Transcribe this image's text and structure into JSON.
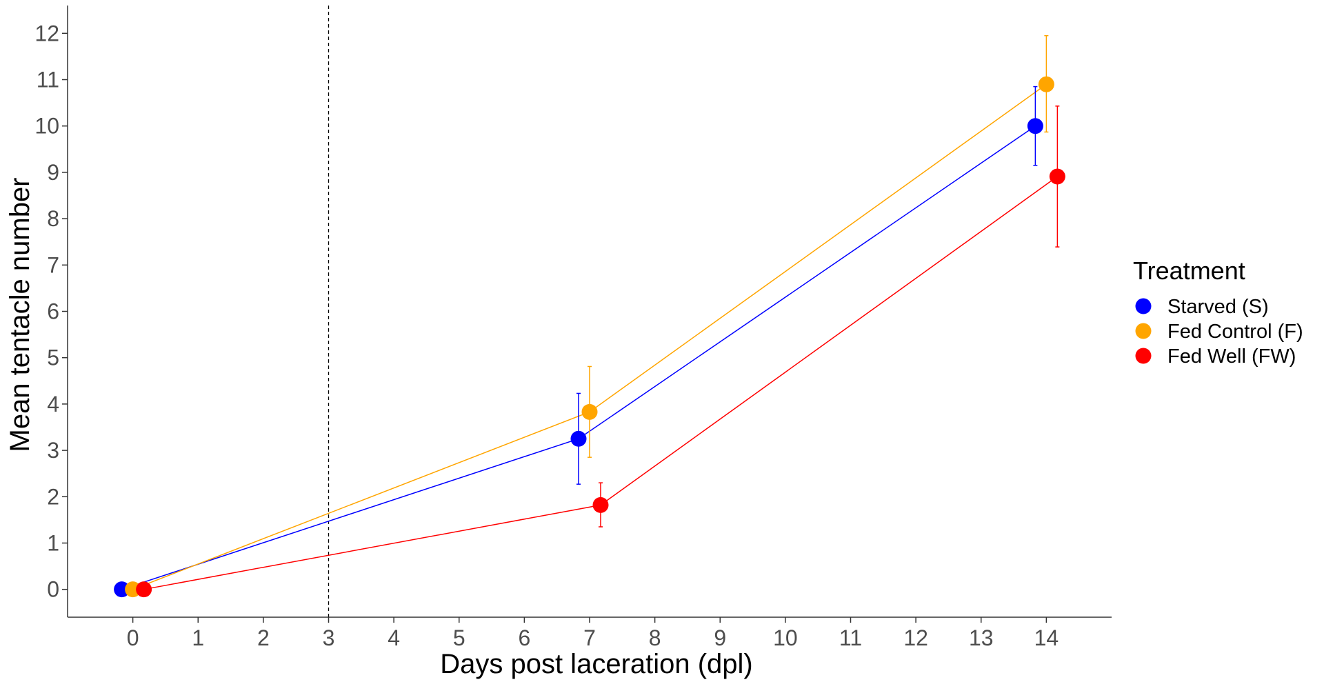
{
  "chart_data": {
    "type": "line",
    "xlabel": "Days post laceration (dpl)",
    "ylabel": "Mean tentacle number",
    "xlim": [
      -1,
      15
    ],
    "ylim": [
      -0.6,
      12.6
    ],
    "x_ticks": [
      0,
      1,
      2,
      3,
      4,
      5,
      6,
      7,
      8,
      9,
      10,
      11,
      12,
      13,
      14
    ],
    "y_ticks": [
      0,
      1,
      2,
      3,
      4,
      5,
      6,
      7,
      8,
      9,
      10,
      11,
      12
    ],
    "reference_line": {
      "x": 3,
      "style": "dashed"
    },
    "grid": false,
    "legend": {
      "title": "Treatment",
      "position": "right"
    },
    "series": [
      {
        "name": "Starved (S)",
        "color": "#0000ff",
        "x": [
          0,
          7,
          14
        ],
        "y": [
          0,
          3.25,
          10
        ],
        "err_low": [
          0,
          2.27,
          9.15
        ],
        "err_high": [
          0,
          4.23,
          10.85
        ]
      },
      {
        "name": "Fed Control (F)",
        "color": "#ffa500",
        "x": [
          0,
          7,
          14
        ],
        "y": [
          0,
          3.83,
          10.9
        ],
        "err_low": [
          0,
          2.85,
          9.87
        ],
        "err_high": [
          0,
          4.81,
          11.95
        ]
      },
      {
        "name": "Fed Well (FW)",
        "color": "#ff0000",
        "x": [
          0,
          7,
          14
        ],
        "y": [
          0,
          1.82,
          8.91
        ],
        "err_low": [
          0,
          1.35,
          7.39
        ],
        "err_high": [
          0,
          2.3,
          10.43
        ]
      }
    ]
  }
}
